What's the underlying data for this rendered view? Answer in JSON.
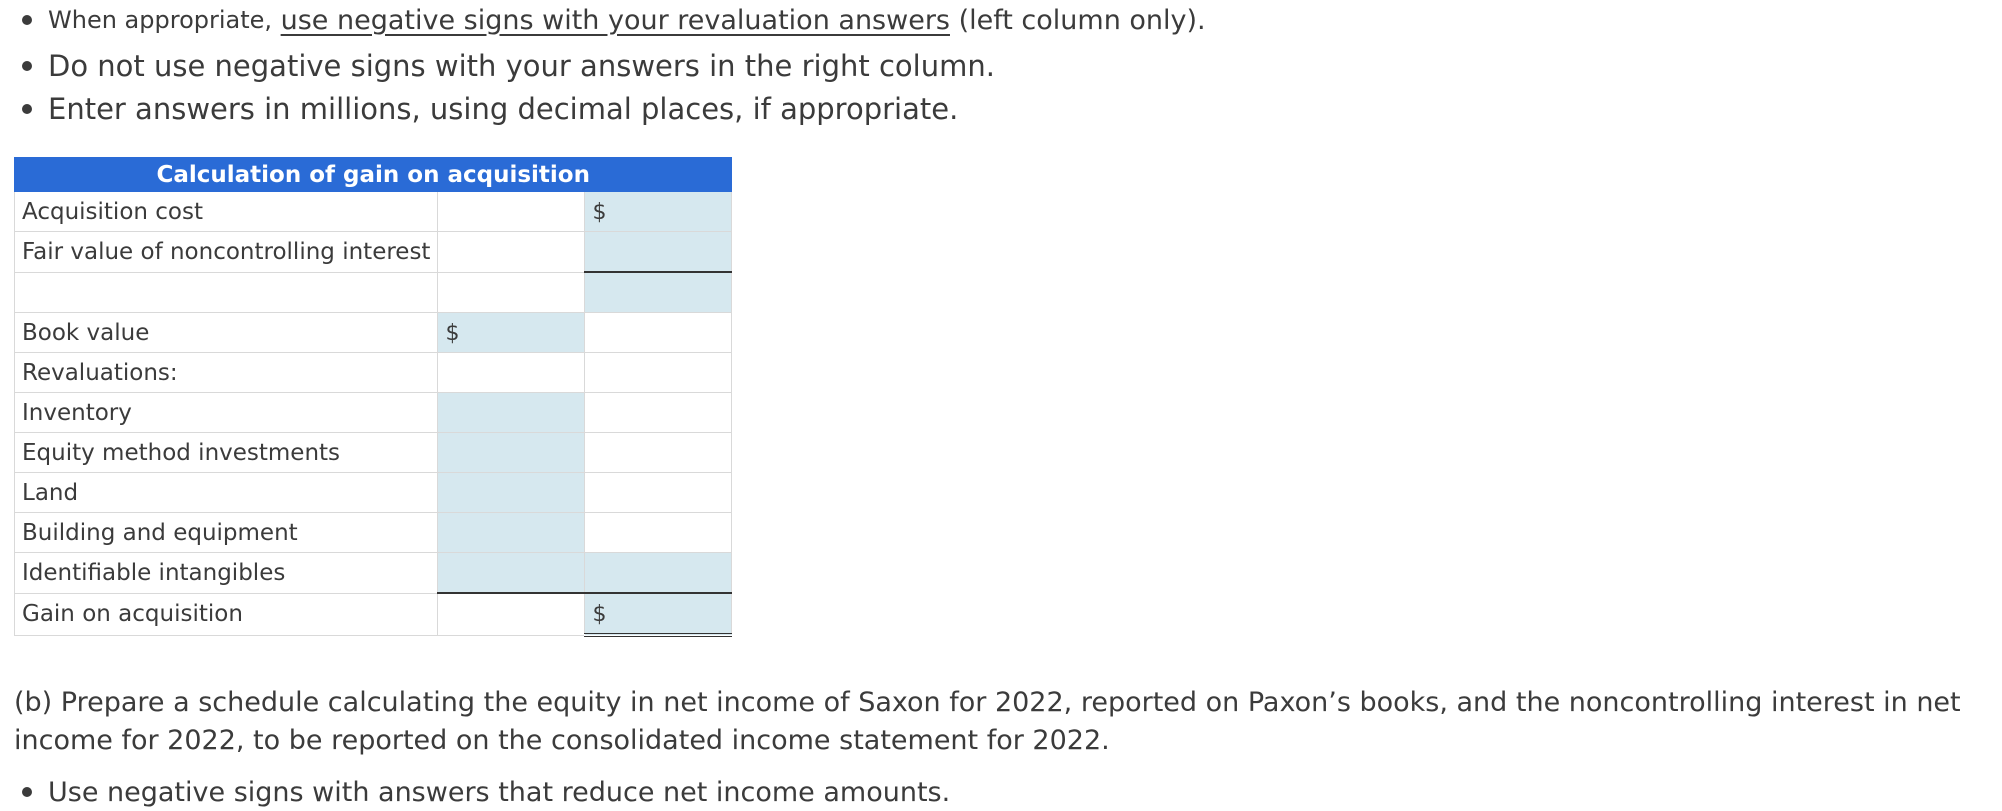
{
  "instructions": {
    "bullet1_prefix": "When appropriate,",
    "bullet1_link": "use negative signs with your revaluation answers",
    "bullet1_suffix": "(left column only).",
    "bullet2": "Do not use negative signs with your answers in the right column.",
    "bullet3": "Enter answers in millions, using decimal places, if appropriate."
  },
  "table": {
    "title": "Calculation of gain on acquisition",
    "currency_symbol": "$",
    "rows": {
      "acquisition_cost": "Acquisition cost",
      "fair_value_nci": "Fair value of noncontrolling interest",
      "book_value": "Book value",
      "revaluations": "Revaluations:",
      "inventory": "Inventory",
      "equity_method": "Equity method investments",
      "land": "Land",
      "building": "Building and equipment",
      "intangibles": "Identifiable intangibles",
      "gain": "Gain on acquisition"
    },
    "colors": {
      "header": "#2a6bd6",
      "input_fill": "#d6e8ef"
    }
  },
  "part_b": {
    "text": "(b) Prepare a schedule calculating the equity in net income of Saxon for 2022, reported on Paxon’s books, and the noncontrolling interest in net income for 2022, to be reported on the consolidated income statement for 2022.",
    "bullet": "Use negative signs with answers that reduce net income amounts."
  }
}
